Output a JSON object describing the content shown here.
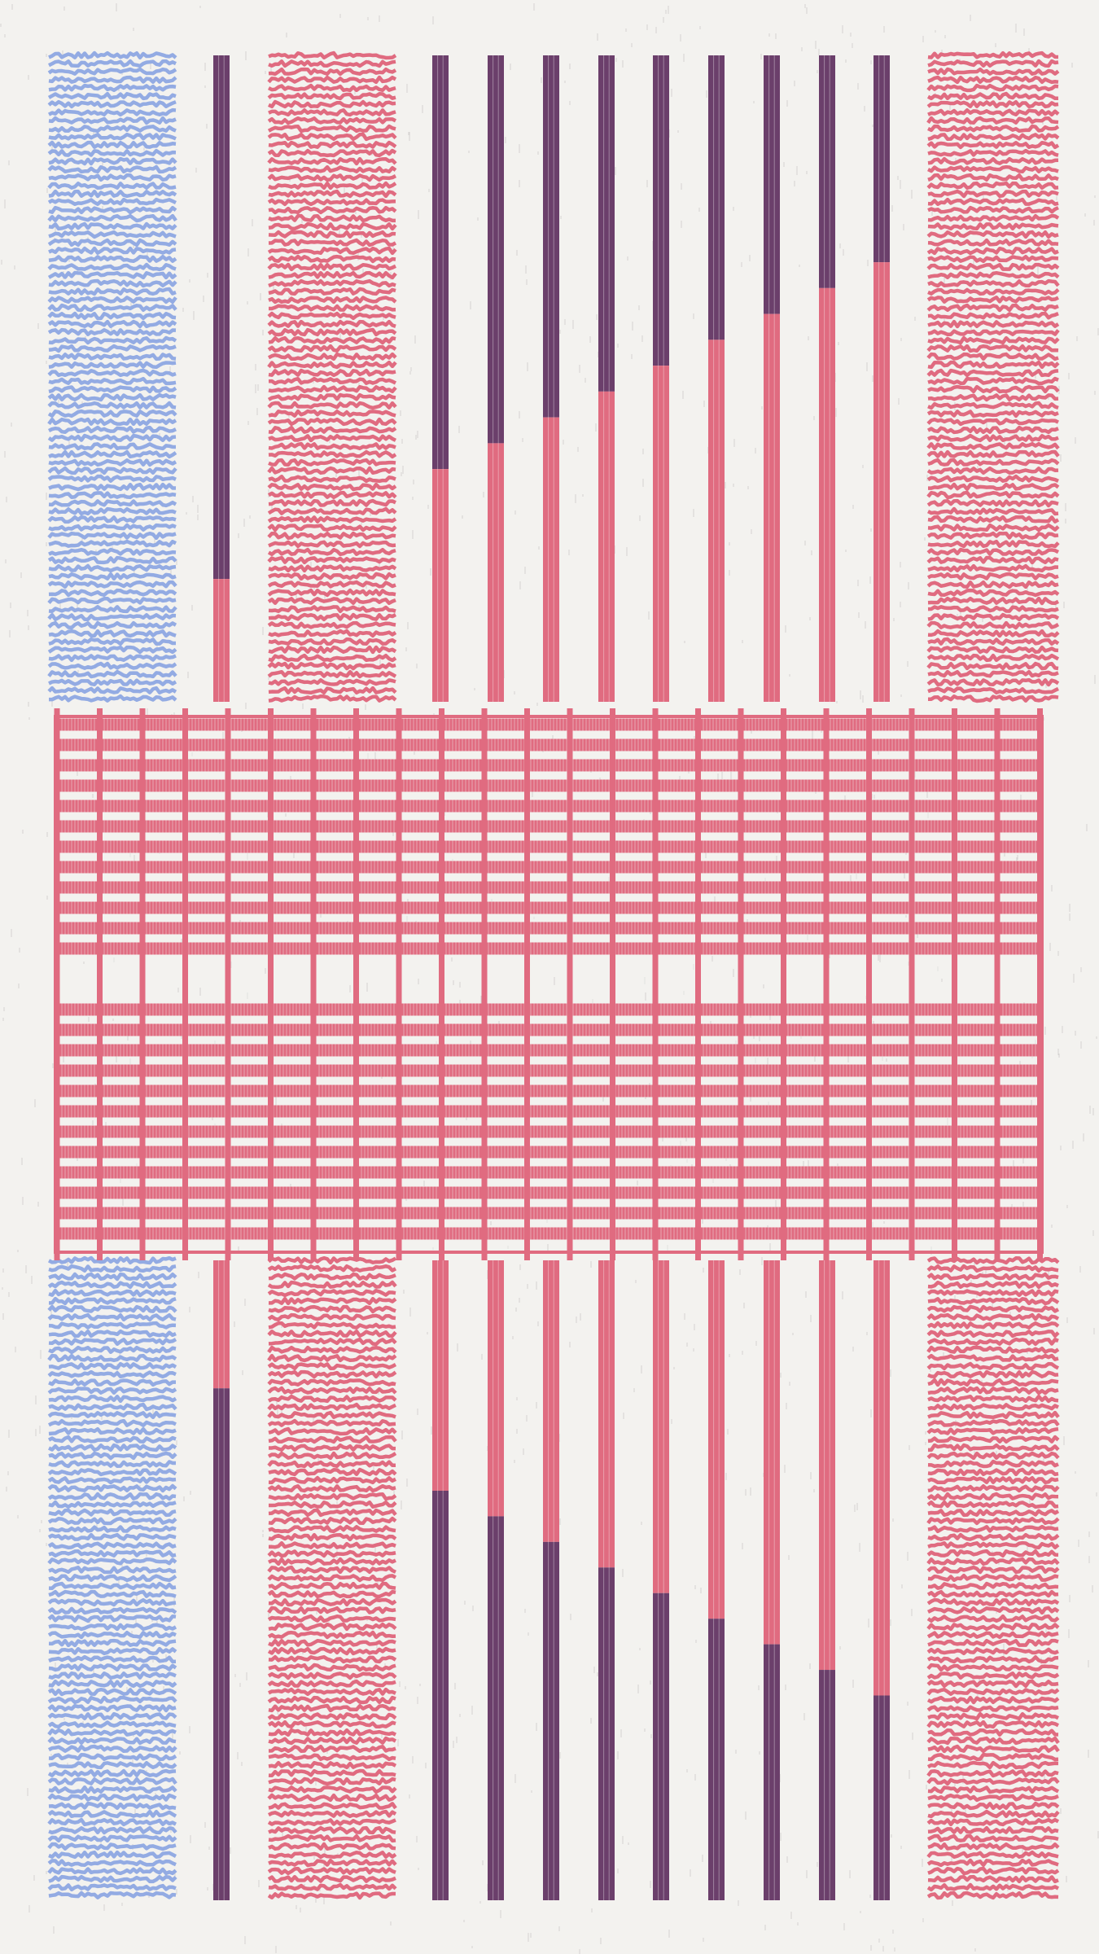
{
  "artwork": {
    "background_color": "#f3f2ef",
    "palette": {
      "blue": "#93abe3",
      "pink": "#e06b80",
      "plum": "#6b3f6b",
      "texture": "#9a9a9a"
    },
    "top_stripes": [
      {
        "name": "blue-hatched-panel-left-top",
        "style": "hatched",
        "color": "blue"
      },
      {
        "name": "bicolor-rod-1-top",
        "style": "bicolor",
        "upper": "plum",
        "lower": "pink",
        "upper_fraction": 0.81
      },
      {
        "name": "pink-hatched-panel-center-top",
        "style": "hatched",
        "color": "pink"
      },
      {
        "name": "bicolor-rod-2-top",
        "style": "bicolor",
        "upper": "plum",
        "lower": "pink",
        "upper_fraction": 0.64
      },
      {
        "name": "bicolor-rod-3-top",
        "style": "bicolor",
        "upper": "plum",
        "lower": "pink",
        "upper_fraction": 0.6
      },
      {
        "name": "bicolor-rod-4-top",
        "style": "bicolor",
        "upper": "plum",
        "lower": "pink",
        "upper_fraction": 0.56
      },
      {
        "name": "bicolor-rod-5-top",
        "style": "bicolor",
        "upper": "plum",
        "lower": "pink",
        "upper_fraction": 0.52
      },
      {
        "name": "bicolor-rod-6-top",
        "style": "bicolor",
        "upper": "plum",
        "lower": "pink",
        "upper_fraction": 0.48
      },
      {
        "name": "bicolor-rod-7-top",
        "style": "bicolor",
        "upper": "plum",
        "lower": "pink",
        "upper_fraction": 0.44
      },
      {
        "name": "bicolor-rod-8-top",
        "style": "bicolor",
        "upper": "plum",
        "lower": "pink",
        "upper_fraction": 0.4
      },
      {
        "name": "bicolor-rod-9-top",
        "style": "bicolor",
        "upper": "plum",
        "lower": "pink",
        "upper_fraction": 0.36
      },
      {
        "name": "bicolor-rod-10-top",
        "style": "bicolor",
        "upper": "plum",
        "lower": "pink",
        "upper_fraction": 0.32
      },
      {
        "name": "pink-hatched-panel-right-top",
        "style": "hatched",
        "color": "pink"
      }
    ],
    "bottom_stripes": [
      {
        "name": "blue-hatched-panel-left-bottom",
        "style": "hatched",
        "color": "blue"
      },
      {
        "name": "bicolor-rod-1-bottom",
        "style": "bicolor",
        "upper": "pink",
        "lower": "plum",
        "upper_fraction": 0.2
      },
      {
        "name": "pink-hatched-panel-center-bottom",
        "style": "hatched",
        "color": "pink"
      },
      {
        "name": "bicolor-rod-2-bottom",
        "style": "bicolor",
        "upper": "pink",
        "lower": "plum",
        "upper_fraction": 0.36
      },
      {
        "name": "bicolor-rod-3-bottom",
        "style": "bicolor",
        "upper": "pink",
        "lower": "plum",
        "upper_fraction": 0.4
      },
      {
        "name": "bicolor-rod-4-bottom",
        "style": "bicolor",
        "upper": "pink",
        "lower": "plum",
        "upper_fraction": 0.44
      },
      {
        "name": "bicolor-rod-5-bottom",
        "style": "bicolor",
        "upper": "pink",
        "lower": "plum",
        "upper_fraction": 0.48
      },
      {
        "name": "bicolor-rod-6-bottom",
        "style": "bicolor",
        "upper": "pink",
        "lower": "plum",
        "upper_fraction": 0.52
      },
      {
        "name": "bicolor-rod-7-bottom",
        "style": "bicolor",
        "upper": "pink",
        "lower": "plum",
        "upper_fraction": 0.56
      },
      {
        "name": "bicolor-rod-8-bottom",
        "style": "bicolor",
        "upper": "pink",
        "lower": "plum",
        "upper_fraction": 0.6
      },
      {
        "name": "bicolor-rod-9-bottom",
        "style": "bicolor",
        "upper": "pink",
        "lower": "plum",
        "upper_fraction": 0.64
      },
      {
        "name": "bicolor-rod-10-bottom",
        "style": "bicolor",
        "upper": "pink",
        "lower": "plum",
        "upper_fraction": 0.68
      },
      {
        "name": "pink-hatched-panel-right-bottom",
        "style": "hatched",
        "color": "pink"
      }
    ],
    "central_band": {
      "name": "pink-woven-grid-band",
      "color": "pink",
      "style": "woven-grid"
    }
  }
}
